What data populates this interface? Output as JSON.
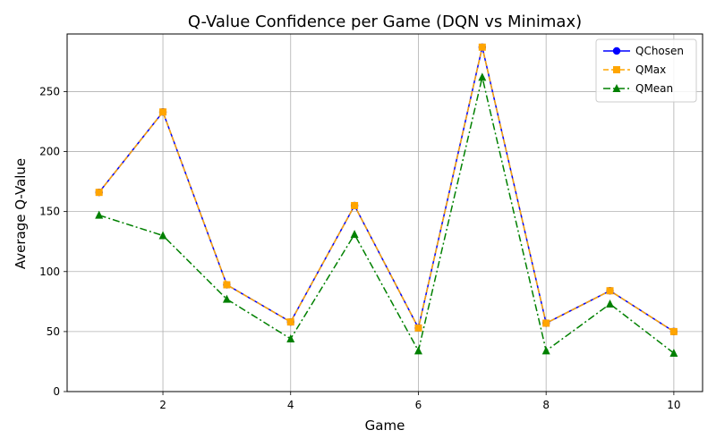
{
  "chart_data": {
    "type": "line",
    "title": "Q-Value Confidence per Game (DQN vs Minimax)",
    "xlabel": "Game",
    "ylabel": "Average Q-Value",
    "x": [
      1,
      2,
      3,
      4,
      5,
      6,
      7,
      8,
      9,
      10
    ],
    "xlim": [
      0.5,
      10.45
    ],
    "ylim": [
      0,
      298
    ],
    "xticks": [
      2,
      4,
      6,
      8,
      10
    ],
    "yticks": [
      0,
      50,
      100,
      150,
      200,
      250
    ],
    "grid": true,
    "legend_position": "top-right",
    "series": [
      {
        "name": "QChosen",
        "color": "#0000ff",
        "line": "solid",
        "marker": "circle",
        "values": [
          166,
          233,
          89,
          58,
          155,
          53,
          287,
          57,
          84,
          50
        ]
      },
      {
        "name": "QMax",
        "color": "#ffa500",
        "line": "dashed",
        "marker": "square",
        "values": [
          166,
          233,
          89,
          58,
          155,
          53,
          287,
          57,
          84,
          50
        ]
      },
      {
        "name": "QMean",
        "color": "#008000",
        "line": "dashdot",
        "marker": "triangle",
        "values": [
          147,
          130,
          77,
          44,
          131,
          34,
          262,
          34,
          73,
          32
        ]
      }
    ]
  }
}
